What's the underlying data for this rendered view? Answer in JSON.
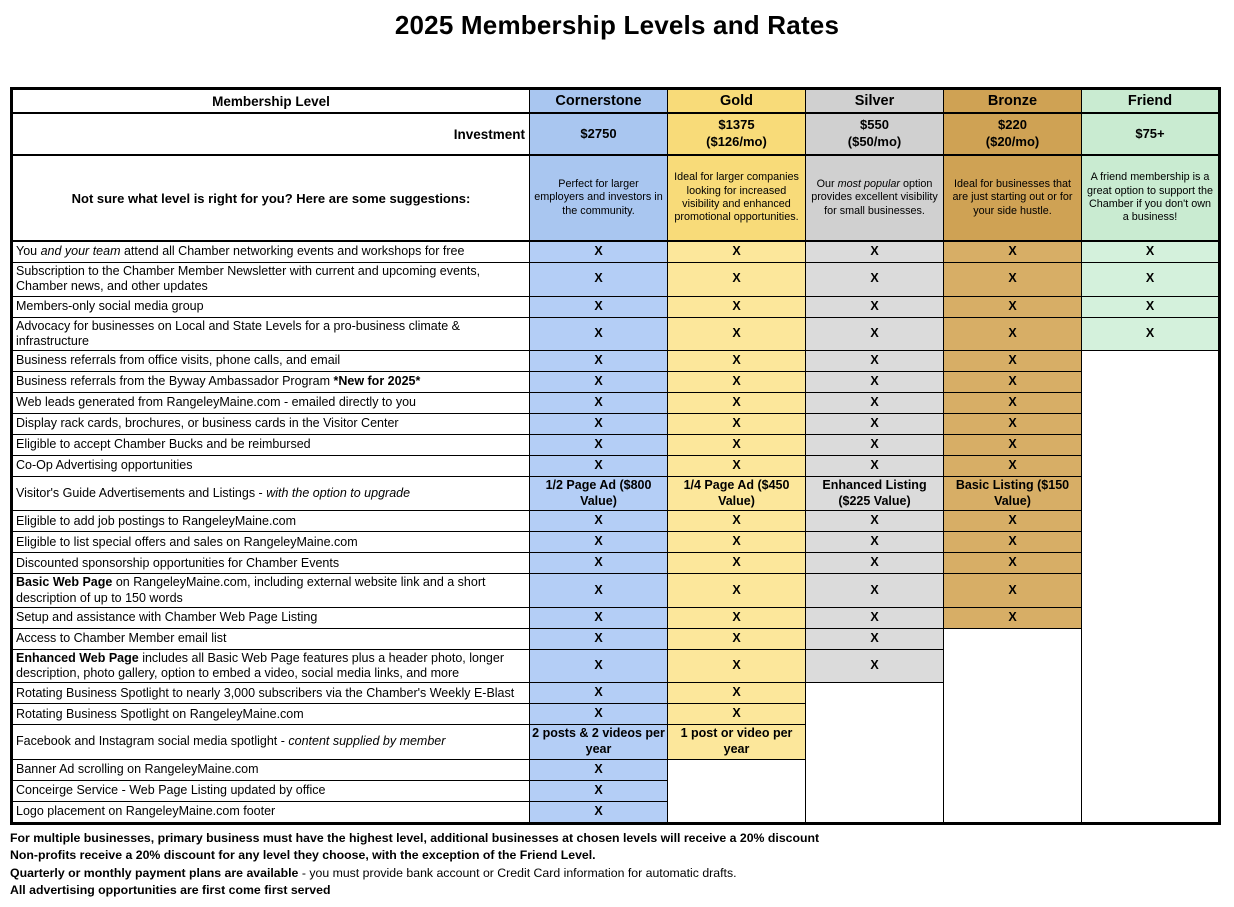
{
  "page": {
    "title": "2025 Membership Levels and Rates"
  },
  "table": {
    "corner_header": "Membership Level",
    "investment_label": "Investment",
    "suggestions_label": "Not sure what level is right for you? Here are some suggestions:",
    "check_mark": "X",
    "levels": [
      {
        "name": "Cornerstone",
        "price_lines": [
          "$2750"
        ],
        "desc": [
          {
            "t": "Perfect for larger employers and investors in the community."
          }
        ],
        "header_color": "#A9C6F0",
        "cell_color": "#B4CEF6"
      },
      {
        "name": "Gold",
        "price_lines": [
          "$1375",
          "($126/mo)"
        ],
        "desc": [
          {
            "t": "Ideal for larger companies looking for increased visibility and enhanced promotional opportunities."
          }
        ],
        "header_color": "#F8DB79",
        "cell_color": "#FCE79B"
      },
      {
        "name": "Silver",
        "price_lines": [
          "$550",
          "($50/mo)"
        ],
        "desc": [
          {
            "t": "Our "
          },
          {
            "t": "most popular",
            "i": true
          },
          {
            "t": " option provides excellent visibility for small businesses."
          }
        ],
        "header_color": "#D0D0D0",
        "cell_color": "#DBDBDB"
      },
      {
        "name": "Bronze",
        "price_lines": [
          "$220",
          "($20/mo)"
        ],
        "desc": [
          {
            "t": "Ideal for businesses that are just starting out or for your side hustle."
          }
        ],
        "header_color": "#CFA254",
        "cell_color": "#D7AE66"
      },
      {
        "name": "Friend",
        "price_lines": [
          "$75+"
        ],
        "desc": [
          {
            "t": "A friend membership is a great option to support the Chamber if you don't own a business!"
          }
        ],
        "header_color": "#C9EBD1",
        "cell_color": "#D4F1DC"
      }
    ],
    "rows": [
      {
        "label": [
          {
            "t": "You "
          },
          {
            "t": "and your team",
            "i": true
          },
          {
            "t": " attend all Chamber networking events and workshops for free"
          }
        ],
        "cells": [
          "X",
          "X",
          "X",
          "X",
          "X"
        ]
      },
      {
        "label": [
          {
            "t": "Subscription to the Chamber Member Newsletter with current and upcoming events, Chamber news, and other updates"
          }
        ],
        "cells": [
          "X",
          "X",
          "X",
          "X",
          "X"
        ]
      },
      {
        "label": [
          {
            "t": "Members-only social media group"
          }
        ],
        "cells": [
          "X",
          "X",
          "X",
          "X",
          "X"
        ]
      },
      {
        "label": [
          {
            "t": "Advocacy for businesses on Local and State Levels for a pro-business climate & infrastructure"
          }
        ],
        "cells": [
          "X",
          "X",
          "X",
          "X",
          "X"
        ]
      },
      {
        "label": [
          {
            "t": "Business referrals from office visits, phone calls, and email"
          }
        ],
        "cells": [
          "X",
          "X",
          "X",
          "X",
          null
        ]
      },
      {
        "label": [
          {
            "t": "Business referrals from the Byway Ambassador Program "
          },
          {
            "t": "*New for 2025*",
            "b": true
          }
        ],
        "cells": [
          "X",
          "X",
          "X",
          "X",
          null
        ]
      },
      {
        "label": [
          {
            "t": "Web leads generated from RangeleyMaine.com - emailed directly to you"
          }
        ],
        "cells": [
          "X",
          "X",
          "X",
          "X",
          null
        ]
      },
      {
        "label": [
          {
            "t": "Display rack cards, brochures, or business cards in the Visitor Center"
          }
        ],
        "cells": [
          "X",
          "X",
          "X",
          "X",
          null
        ]
      },
      {
        "label": [
          {
            "t": "Eligible to accept Chamber Bucks and be reimbursed"
          }
        ],
        "cells": [
          "X",
          "X",
          "X",
          "X",
          null
        ]
      },
      {
        "label": [
          {
            "t": "Co-Op Advertising opportunities"
          }
        ],
        "cells": [
          "X",
          "X",
          "X",
          "X",
          null
        ]
      },
      {
        "label": [
          {
            "t": "Visitor's Guide Advertisements and Listings - "
          },
          {
            "t": "with the option to upgrade",
            "i": true
          }
        ],
        "cells": [
          "1/2 Page Ad  ($800 Value)",
          "1/4 Page Ad ($450 Value)",
          "Enhanced Listing ($225 Value)",
          "Basic Listing ($150 Value)",
          null
        ]
      },
      {
        "label": [
          {
            "t": "Eligible to add job postings to RangeleyMaine.com"
          }
        ],
        "cells": [
          "X",
          "X",
          "X",
          "X",
          null
        ]
      },
      {
        "label": [
          {
            "t": "Eligible to list special offers and sales on RangeleyMaine.com"
          }
        ],
        "cells": [
          "X",
          "X",
          "X",
          "X",
          null
        ]
      },
      {
        "label": [
          {
            "t": "Discounted sponsorship opportunities for Chamber Events"
          }
        ],
        "cells": [
          "X",
          "X",
          "X",
          "X",
          null
        ]
      },
      {
        "label": [
          {
            "t": "Basic Web Page",
            "b": true
          },
          {
            "t": " on RangeleyMaine.com, including external website link and a short description of up to 150 words"
          }
        ],
        "cells": [
          "X",
          "X",
          "X",
          "X",
          null
        ]
      },
      {
        "label": [
          {
            "t": "Setup and assistance with Chamber Web Page Listing"
          }
        ],
        "cells": [
          "X",
          "X",
          "X",
          "X",
          null
        ]
      },
      {
        "label": [
          {
            "t": "Access to Chamber Member email list"
          }
        ],
        "cells": [
          "X",
          "X",
          "X",
          null,
          null
        ]
      },
      {
        "label": [
          {
            "t": "Enhanced Web Page",
            "b": true
          },
          {
            "t": " includes all Basic Web Page features plus a header photo, longer description, photo gallery, option to embed a video, social media links, and more"
          }
        ],
        "cells": [
          "X",
          "X",
          "X",
          null,
          null
        ]
      },
      {
        "label": [
          {
            "t": "Rotating Business Spotlight to nearly 3,000 subscribers via the Chamber's Weekly E-Blast"
          }
        ],
        "cells": [
          "X",
          "X",
          null,
          null,
          null
        ]
      },
      {
        "label": [
          {
            "t": "Rotating Business Spotlight on RangeleyMaine.com"
          }
        ],
        "cells": [
          "X",
          "X",
          null,
          null,
          null
        ]
      },
      {
        "label": [
          {
            "t": "Facebook and Instagram social media spotlight - "
          },
          {
            "t": "content supplied by member",
            "i": true
          }
        ],
        "cells": [
          "2 posts & 2 videos per year",
          "1 post or video per year",
          null,
          null,
          null
        ]
      },
      {
        "label": [
          {
            "t": "Banner Ad scrolling on RangeleyMaine.com"
          }
        ],
        "cells": [
          "X",
          null,
          null,
          null,
          null
        ]
      },
      {
        "label": [
          {
            "t": "Conceirge Service - Web Page Listing updated by office"
          }
        ],
        "cells": [
          "X",
          null,
          null,
          null,
          null
        ]
      },
      {
        "label": [
          {
            "t": "Logo placement on RangeleyMaine.com footer"
          }
        ],
        "cells": [
          "X",
          null,
          null,
          null,
          null
        ]
      }
    ]
  },
  "footnotes": [
    [
      {
        "t": "For multiple businesses, primary business must have the highest level, additional businesses at chosen levels will receive a 20% discount",
        "b": true
      }
    ],
    [
      {
        "t": "Non-profits receive a 20% discount for any level they choose, with the exception of the Friend Level.",
        "b": true
      }
    ],
    [
      {
        "t": "Quarterly or monthly payment plans are available",
        "b": true
      },
      {
        "t": " - you must provide bank account or Credit Card information for automatic drafts."
      }
    ],
    [
      {
        "t": "All advertising opportunities are first come first served",
        "b": true
      }
    ]
  ]
}
